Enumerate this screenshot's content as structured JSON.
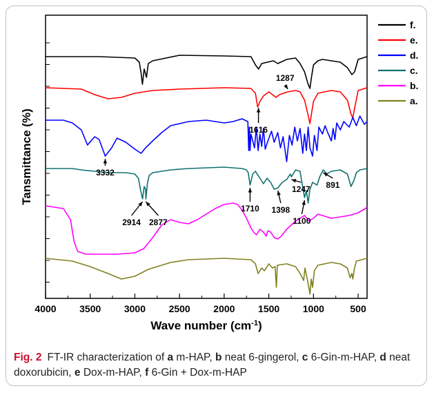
{
  "chart_data": {
    "type": "line",
    "xlabel": "Wave number (cm",
    "xlabel_sup": "-1",
    "xlabel_end": ")",
    "ylabel": "Tansmittance (%)",
    "x_ticks": [
      "4000",
      "3500",
      "3000",
      "2500",
      "2000",
      "1500",
      "1000",
      "500"
    ],
    "xlim": [
      4000,
      400
    ],
    "series": [
      {
        "name": "f.",
        "color": "#000000",
        "offset": 82,
        "points": [
          [
            4000,
            0
          ],
          [
            3400,
            0
          ],
          [
            3000,
            2
          ],
          [
            2950,
            8
          ],
          [
            2930,
            24
          ],
          [
            2915,
            40
          ],
          [
            2895,
            18
          ],
          [
            2870,
            30
          ],
          [
            2850,
            10
          ],
          [
            2800,
            6
          ],
          [
            2500,
            -2
          ],
          [
            2000,
            -1
          ],
          [
            1700,
            0
          ],
          [
            1650,
            12
          ],
          [
            1615,
            18
          ],
          [
            1580,
            10
          ],
          [
            1450,
            6
          ],
          [
            1400,
            10
          ],
          [
            1300,
            4
          ],
          [
            1200,
            2
          ],
          [
            1150,
            10
          ],
          [
            1100,
            22
          ],
          [
            1060,
            40
          ],
          [
            1040,
            46
          ],
          [
            1020,
            28
          ],
          [
            1000,
            12
          ],
          [
            950,
            6
          ],
          [
            900,
            4
          ],
          [
            800,
            6
          ],
          [
            700,
            8
          ],
          [
            620,
            16
          ],
          [
            570,
            26
          ],
          [
            540,
            22
          ],
          [
            500,
            4
          ],
          [
            400,
            0
          ]
        ]
      },
      {
        "name": "e.",
        "color": "#ff0000",
        "offset": 127,
        "points": [
          [
            4000,
            0
          ],
          [
            3600,
            2
          ],
          [
            3450,
            10
          ],
          [
            3300,
            16
          ],
          [
            3150,
            14
          ],
          [
            3000,
            8
          ],
          [
            2800,
            4
          ],
          [
            2500,
            2
          ],
          [
            2000,
            0
          ],
          [
            1700,
            1
          ],
          [
            1650,
            8
          ],
          [
            1625,
            28
          ],
          [
            1600,
            20
          ],
          [
            1560,
            12
          ],
          [
            1500,
            6
          ],
          [
            1420,
            14
          ],
          [
            1380,
            10
          ],
          [
            1287,
            6
          ],
          [
            1200,
            4
          ],
          [
            1150,
            6
          ],
          [
            1100,
            18
          ],
          [
            1060,
            40
          ],
          [
            1040,
            52
          ],
          [
            1020,
            36
          ],
          [
            1000,
            20
          ],
          [
            950,
            8
          ],
          [
            800,
            4
          ],
          [
            700,
            6
          ],
          [
            620,
            18
          ],
          [
            580,
            38
          ],
          [
            560,
            44
          ],
          [
            540,
            30
          ],
          [
            500,
            4
          ],
          [
            400,
            0
          ]
        ]
      },
      {
        "name": "d.",
        "color": "#0000ff",
        "offset": 174,
        "points": [
          [
            4000,
            0
          ],
          [
            3800,
            0
          ],
          [
            3700,
            4
          ],
          [
            3600,
            14
          ],
          [
            3530,
            36
          ],
          [
            3450,
            24
          ],
          [
            3400,
            28
          ],
          [
            3332,
            52
          ],
          [
            3260,
            40
          ],
          [
            3200,
            26
          ],
          [
            3100,
            32
          ],
          [
            3000,
            42
          ],
          [
            2930,
            48
          ],
          [
            2880,
            40
          ],
          [
            2800,
            30
          ],
          [
            2700,
            18
          ],
          [
            2600,
            8
          ],
          [
            2400,
            2
          ],
          [
            2200,
            0
          ],
          [
            2000,
            4
          ],
          [
            1900,
            2
          ],
          [
            1800,
            -2
          ],
          [
            1735,
            2
          ],
          [
            1725,
            44
          ],
          [
            1718,
            10
          ],
          [
            1710,
            44
          ],
          [
            1700,
            20
          ],
          [
            1660,
            40
          ],
          [
            1640,
            10
          ],
          [
            1620,
            44
          ],
          [
            1600,
            20
          ],
          [
            1580,
            38
          ],
          [
            1560,
            12
          ],
          [
            1540,
            42
          ],
          [
            1510,
            30
          ],
          [
            1470,
            16
          ],
          [
            1440,
            32
          ],
          [
            1400,
            18
          ],
          [
            1370,
            40
          ],
          [
            1340,
            24
          ],
          [
            1300,
            60
          ],
          [
            1270,
            22
          ],
          [
            1240,
            36
          ],
          [
            1210,
            10
          ],
          [
            1180,
            30
          ],
          [
            1150,
            12
          ],
          [
            1120,
            48
          ],
          [
            1100,
            20
          ],
          [
            1080,
            44
          ],
          [
            1060,
            10
          ],
          [
            1040,
            40
          ],
          [
            1010,
            52
          ],
          [
            990,
            22
          ],
          [
            960,
            44
          ],
          [
            940,
            10
          ],
          [
            900,
            20
          ],
          [
            870,
            8
          ],
          [
            840,
            18
          ],
          [
            800,
            30
          ],
          [
            780,
            12
          ],
          [
            760,
            28
          ],
          [
            740,
            4
          ],
          [
            700,
            14
          ],
          [
            660,
            2
          ],
          [
            600,
            10
          ],
          [
            560,
            -4
          ],
          [
            520,
            8
          ],
          [
            480,
            -6
          ],
          [
            430,
            6
          ],
          [
            400,
            2
          ]
        ]
      },
      {
        "name": "c.",
        "color": "#107070",
        "offset": 244,
        "points": [
          [
            4000,
            0
          ],
          [
            3700,
            0
          ],
          [
            3600,
            2
          ],
          [
            3450,
            4
          ],
          [
            3300,
            6
          ],
          [
            3100,
            6
          ],
          [
            3000,
            8
          ],
          [
            2960,
            14
          ],
          [
            2935,
            32
          ],
          [
            2914,
            44
          ],
          [
            2895,
            26
          ],
          [
            2880,
            30
          ],
          [
            2877,
            44
          ],
          [
            2860,
            22
          ],
          [
            2840,
            10
          ],
          [
            2800,
            6
          ],
          [
            2600,
            2
          ],
          [
            2400,
            0
          ],
          [
            2000,
            -2
          ],
          [
            1800,
            0
          ],
          [
            1750,
            2
          ],
          [
            1730,
            6
          ],
          [
            1710,
            24
          ],
          [
            1680,
            8
          ],
          [
            1650,
            4
          ],
          [
            1600,
            14
          ],
          [
            1560,
            22
          ],
          [
            1520,
            14
          ],
          [
            1480,
            20
          ],
          [
            1440,
            30
          ],
          [
            1398,
            28
          ],
          [
            1350,
            20
          ],
          [
            1300,
            16
          ],
          [
            1260,
            8
          ],
          [
            1247,
            12
          ],
          [
            1200,
            2
          ],
          [
            1150,
            4
          ],
          [
            1130,
            20
          ],
          [
            1100,
            42
          ],
          [
            1080,
            32
          ],
          [
            1060,
            50
          ],
          [
            1040,
            30
          ],
          [
            1010,
            20
          ],
          [
            960,
            24
          ],
          [
            930,
            12
          ],
          [
            891,
            2
          ],
          [
            850,
            8
          ],
          [
            800,
            4
          ],
          [
            700,
            2
          ],
          [
            620,
            8
          ],
          [
            580,
            26
          ],
          [
            550,
            18
          ],
          [
            520,
            6
          ],
          [
            480,
            2
          ],
          [
            400,
            0
          ]
        ]
      },
      {
        "name": "b.",
        "color": "#ff00ff",
        "offset": 298,
        "points": [
          [
            4000,
            0
          ],
          [
            3800,
            4
          ],
          [
            3720,
            20
          ],
          [
            3680,
            52
          ],
          [
            3640,
            66
          ],
          [
            3550,
            70
          ],
          [
            3400,
            70
          ],
          [
            3200,
            70
          ],
          [
            3000,
            68
          ],
          [
            2900,
            62
          ],
          [
            2800,
            46
          ],
          [
            2700,
            28
          ],
          [
            2600,
            20
          ],
          [
            2500,
            24
          ],
          [
            2400,
            26
          ],
          [
            2300,
            20
          ],
          [
            2200,
            12
          ],
          [
            2100,
            4
          ],
          [
            2000,
            -2
          ],
          [
            1900,
            -4
          ],
          [
            1850,
            -2
          ],
          [
            1800,
            6
          ],
          [
            1750,
            18
          ],
          [
            1700,
            32
          ],
          [
            1670,
            38
          ],
          [
            1640,
            42
          ],
          [
            1600,
            34
          ],
          [
            1560,
            38
          ],
          [
            1530,
            44
          ],
          [
            1510,
            36
          ],
          [
            1480,
            38
          ],
          [
            1440,
            46
          ],
          [
            1400,
            48
          ],
          [
            1360,
            44
          ],
          [
            1300,
            34
          ],
          [
            1200,
            22
          ],
          [
            1150,
            18
          ],
          [
            1100,
            14
          ],
          [
            1050,
            22
          ],
          [
            1000,
            18
          ],
          [
            950,
            12
          ],
          [
            900,
            14
          ],
          [
            800,
            18
          ],
          [
            700,
            16
          ],
          [
            600,
            14
          ],
          [
            500,
            10
          ],
          [
            420,
            4
          ],
          [
            400,
            2
          ]
        ]
      },
      {
        "name": "a.",
        "color": "#808020",
        "offset": 374,
        "points": [
          [
            4000,
            0
          ],
          [
            3700,
            4
          ],
          [
            3500,
            12
          ],
          [
            3300,
            22
          ],
          [
            3150,
            30
          ],
          [
            3000,
            26
          ],
          [
            2850,
            16
          ],
          [
            2600,
            6
          ],
          [
            2400,
            2
          ],
          [
            2000,
            0
          ],
          [
            1700,
            2
          ],
          [
            1650,
            8
          ],
          [
            1620,
            22
          ],
          [
            1580,
            14
          ],
          [
            1550,
            18
          ],
          [
            1500,
            8
          ],
          [
            1460,
            14
          ],
          [
            1430,
            12
          ],
          [
            1415,
            42
          ],
          [
            1405,
            10
          ],
          [
            1300,
            8
          ],
          [
            1200,
            12
          ],
          [
            1150,
            22
          ],
          [
            1110,
            32
          ],
          [
            1095,
            14
          ],
          [
            1070,
            30
          ],
          [
            1050,
            44
          ],
          [
            1040,
            52
          ],
          [
            1025,
            30
          ],
          [
            1010,
            42
          ],
          [
            990,
            18
          ],
          [
            950,
            10
          ],
          [
            800,
            6
          ],
          [
            700,
            8
          ],
          [
            620,
            14
          ],
          [
            590,
            28
          ],
          [
            570,
            22
          ],
          [
            560,
            30
          ],
          [
            540,
            14
          ],
          [
            520,
            4
          ],
          [
            400,
            0
          ]
        ]
      }
    ],
    "annotations": [
      {
        "text": "1616",
        "x": 1616,
        "series": 1
      },
      {
        "text": "1287",
        "x": 1287,
        "series": 1
      },
      {
        "text": "3332",
        "x": 3332,
        "series": 2
      },
      {
        "text": "2914",
        "x": 2914,
        "series": 3
      },
      {
        "text": "2877",
        "x": 2877,
        "series": 3
      },
      {
        "text": "1710",
        "x": 1710,
        "series": 3
      },
      {
        "text": "1398",
        "x": 1398,
        "series": 3
      },
      {
        "text": "1247",
        "x": 1247,
        "series": 3
      },
      {
        "text": "1100",
        "x": 1100,
        "series": 3
      },
      {
        "text": "891",
        "x": 891,
        "series": 3
      }
    ],
    "legend_placement": "top-right"
  },
  "caption": {
    "label": "Fig. 2",
    "text_parts": [
      {
        "t": "FT-IR characterization of ",
        "b": false
      },
      {
        "t": "a",
        "b": true
      },
      {
        "t": " m-HAP, ",
        "b": false
      },
      {
        "t": "b",
        "b": true
      },
      {
        "t": " neat 6-gingerol, ",
        "b": false
      },
      {
        "t": "c",
        "b": true
      },
      {
        "t": " 6-Gin-m-HAP, ",
        "b": false
      },
      {
        "t": "d",
        "b": true
      },
      {
        "t": " neat doxorubicin, ",
        "b": false
      },
      {
        "t": "e",
        "b": true
      },
      {
        "t": " Dox-m-HAP, ",
        "b": false
      },
      {
        "t": "f",
        "b": true
      },
      {
        "t": " 6-Gin + Dox-m-HAP",
        "b": false
      }
    ]
  }
}
